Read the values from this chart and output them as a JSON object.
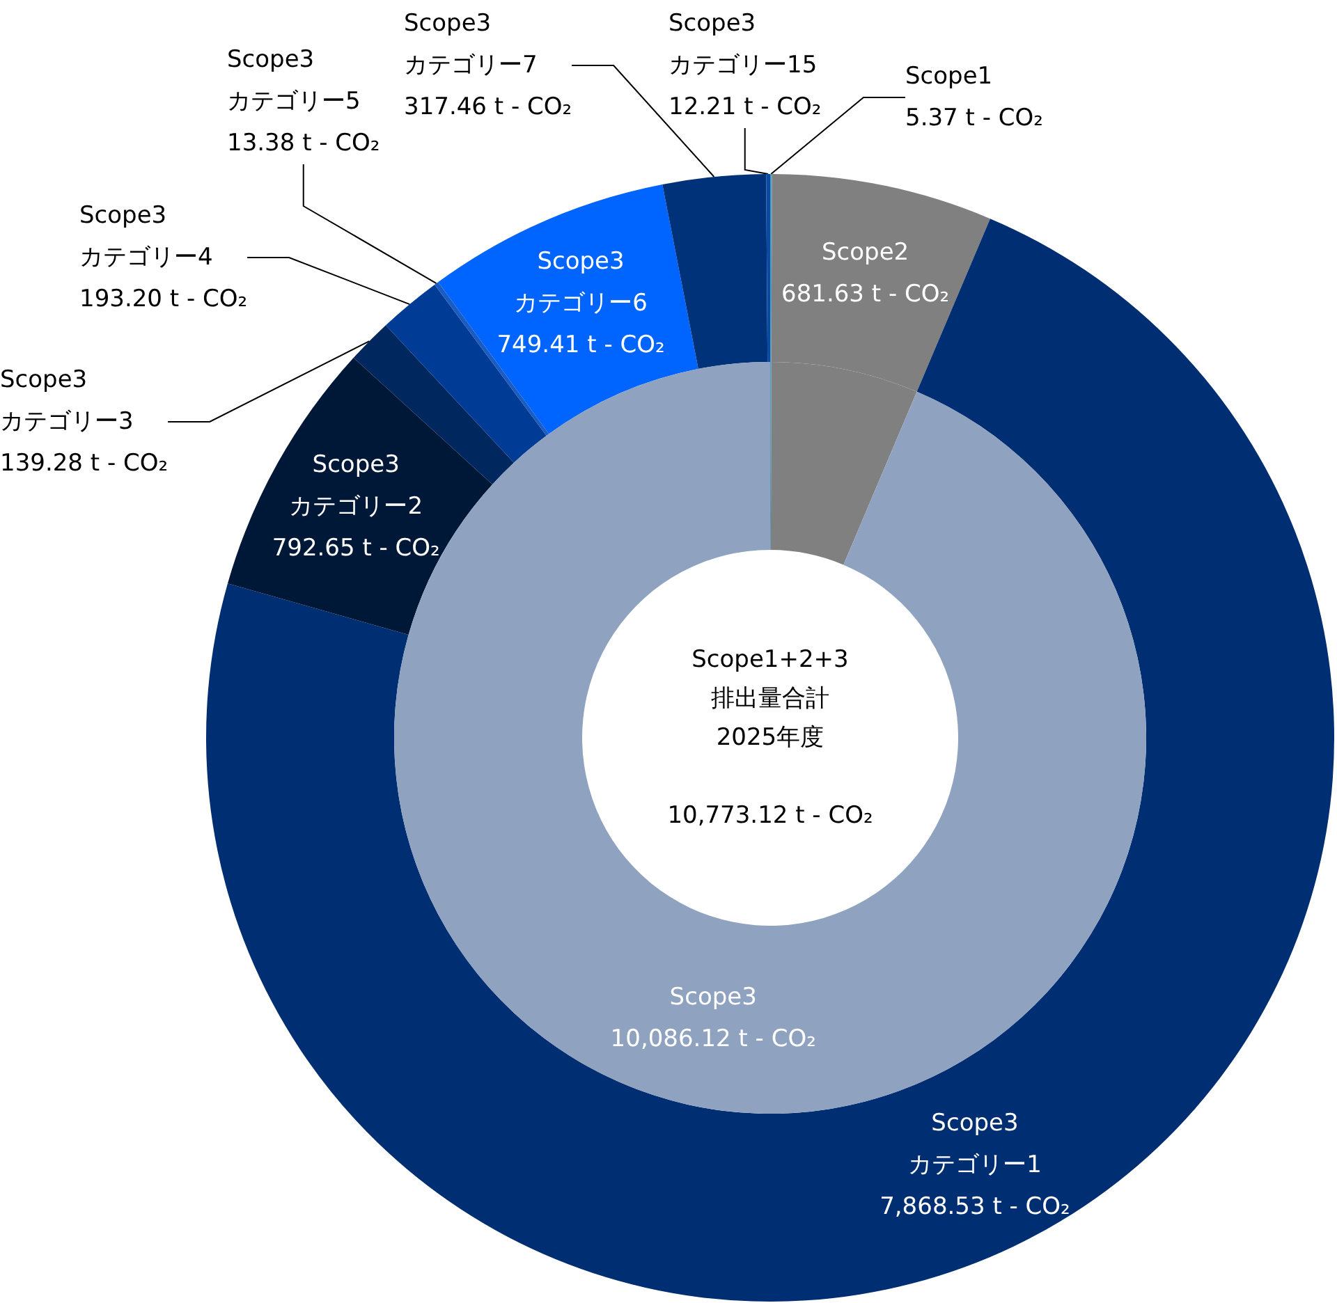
{
  "chart_data": [
    {
      "type": "donut",
      "categories": [
        "Scope1",
        "Scope2",
        "Scope3\nカテゴリー1",
        "Scope3\nカテゴリー2",
        "Scope3\nカテゴリー3",
        "Scope3\nカテゴリー4",
        "Scope3\nカテゴリー5",
        "Scope3\nカテゴリー6",
        "Scope3\nカテゴリー7",
        "Scope3\nカテゴリー15"
      ],
      "values": [
        5.37,
        681.63,
        7868.53,
        792.65,
        139.28,
        193.2,
        13.38,
        749.41,
        317.46,
        12.21
      ],
      "colors": [
        "#4a9cc4",
        "#808080",
        "#002e72",
        "#001838",
        "#00285e",
        "#003c96",
        "#1a5cc0",
        "#0064ff",
        "#00327a",
        "#0a4aa0"
      ],
      "value_labels": [
        "5.37 t - CO₂",
        "681.63 t - CO₂",
        "7,868.53 t - CO₂",
        "792.65 t - CO₂",
        "139.28 t - CO₂",
        "193.20 t - CO₂",
        "13.38 t - CO₂",
        "749.41 t - CO₂",
        "317.46 t - CO₂",
        "12.21 t - CO₂"
      ]
    },
    {
      "type": "donut",
      "categories": [
        null,
        null,
        "Scope3"
      ],
      "values": [
        5.37,
        681.63,
        10086.12
      ],
      "colors": [
        "#4a9cc4",
        "#808080",
        "#8fa3c0"
      ],
      "value_labels": [
        null,
        null,
        "10,086.12 t - CO₂"
      ],
      "annotations": [
        "Scope1+2+3\n排出量合計\n2025年度\n\n10,773.12 t - CO₂"
      ]
    }
  ]
}
